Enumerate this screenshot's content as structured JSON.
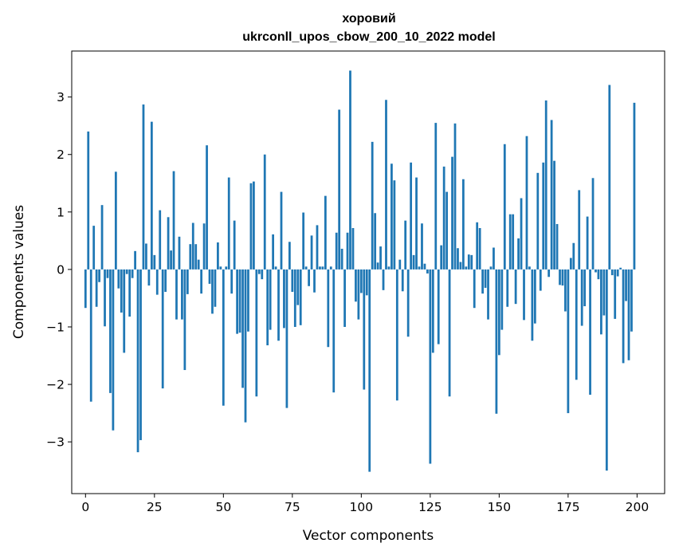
{
  "chart_data": {
    "type": "bar",
    "title": "хоровий",
    "subtitle": "ukrconll_upos_cbow_200_10_2022 model",
    "xlabel": "Vector components",
    "ylabel": "Components values",
    "xlim": [
      -5,
      210
    ],
    "ylim": [
      -3.9,
      3.8
    ],
    "xticks": [
      0,
      25,
      50,
      75,
      100,
      125,
      150,
      175,
      200
    ],
    "yticks": [
      -3,
      -2,
      -1,
      0,
      1,
      2,
      3
    ],
    "ytick_labels": [
      "−3",
      "−2",
      "−1",
      "0",
      "1",
      "2",
      "3"
    ],
    "color": "#1f77b4",
    "grid": false,
    "x": [
      0,
      1,
      2,
      3,
      4,
      5,
      6,
      7,
      8,
      9,
      10,
      11,
      12,
      13,
      14,
      15,
      16,
      17,
      18,
      19,
      20,
      21,
      22,
      23,
      24,
      25,
      26,
      27,
      28,
      29,
      30,
      31,
      32,
      33,
      34,
      35,
      36,
      37,
      38,
      39,
      40,
      41,
      42,
      43,
      44,
      45,
      46,
      47,
      48,
      49,
      50,
      51,
      52,
      53,
      54,
      55,
      56,
      57,
      58,
      59,
      60,
      61,
      62,
      63,
      64,
      65,
      66,
      67,
      68,
      69,
      70,
      71,
      72,
      73,
      74,
      75,
      76,
      77,
      78,
      79,
      80,
      81,
      82,
      83,
      84,
      85,
      86,
      87,
      88,
      89,
      90,
      91,
      92,
      93,
      94,
      95,
      96,
      97,
      98,
      99,
      100,
      101,
      102,
      103,
      104,
      105,
      106,
      107,
      108,
      109,
      110,
      111,
      112,
      113,
      114,
      115,
      116,
      117,
      118,
      119,
      120,
      121,
      122,
      123,
      124,
      125,
      126,
      127,
      128,
      129,
      130,
      131,
      132,
      133,
      134,
      135,
      136,
      137,
      138,
      139,
      140,
      141,
      142,
      143,
      144,
      145,
      146,
      147,
      148,
      149,
      150,
      151,
      152,
      153,
      154,
      155,
      156,
      157,
      158,
      159,
      160,
      161,
      162,
      163,
      164,
      165,
      166,
      167,
      168,
      169,
      170,
      171,
      172,
      173,
      174,
      175,
      176,
      177,
      178,
      179,
      180,
      181,
      182,
      183,
      184,
      185,
      186,
      187,
      188,
      189,
      190,
      191,
      192,
      193,
      194,
      195,
      196,
      197,
      198,
      199
    ],
    "values": [
      -0.67,
      2.4,
      -2.3,
      0.76,
      -0.65,
      -0.22,
      1.12,
      -0.99,
      -0.15,
      -2.15,
      -2.8,
      1.7,
      -0.33,
      -0.75,
      -1.45,
      -0.08,
      -0.82,
      -0.15,
      0.32,
      -3.18,
      -2.97,
      2.87,
      0.45,
      -0.28,
      2.57,
      0.25,
      -0.44,
      1.03,
      -2.07,
      -0.39,
      0.91,
      0.33,
      1.71,
      -0.87,
      0.57,
      -0.87,
      -1.75,
      -0.43,
      0.44,
      0.81,
      0.44,
      0.17,
      -0.42,
      0.8,
      2.16,
      -0.25,
      -0.77,
      -0.65,
      0.47,
      0.05,
      -2.37,
      0.05,
      1.6,
      -0.42,
      0.85,
      -1.12,
      -1.1,
      -2.06,
      -2.66,
      -1.08,
      1.5,
      1.53,
      -2.21,
      -0.08,
      -0.17,
      2.0,
      -1.32,
      -1.05,
      0.61,
      0.05,
      -1.24,
      1.35,
      -1.02,
      -2.41,
      0.48,
      -0.39,
      -1.0,
      -0.62,
      -0.97,
      0.99,
      0.05,
      -0.29,
      0.59,
      -0.4,
      0.77,
      0.05,
      0.05,
      1.28,
      -1.35,
      0.05,
      -2.14,
      0.64,
      2.78,
      0.36,
      -1.0,
      0.64,
      3.46,
      0.72,
      -0.56,
      -0.87,
      -0.41,
      -2.09,
      -0.45,
      -3.52,
      2.22,
      0.98,
      0.12,
      0.4,
      -0.36,
      2.95,
      0.05,
      1.84,
      1.55,
      -2.28,
      0.17,
      -0.38,
      0.85,
      -1.17,
      1.86,
      0.25,
      1.6,
      0.05,
      0.8,
      0.1,
      -0.07,
      -3.38,
      -1.45,
      2.55,
      -1.3,
      0.42,
      1.79,
      1.35,
      -2.21,
      1.96,
      2.54,
      0.37,
      0.13,
      1.57,
      0.05,
      0.26,
      0.25,
      -0.67,
      0.82,
      0.72,
      -0.42,
      -0.32,
      -0.87,
      0.05,
      0.38,
      -2.51,
      -1.49,
      -1.05,
      2.18,
      -0.65,
      0.96,
      0.96,
      -0.6,
      0.54,
      1.24,
      -0.88,
      2.32,
      0.05,
      -1.24,
      -0.94,
      1.68,
      -0.37,
      1.86,
      2.94,
      -0.13,
      2.6,
      1.89,
      0.79,
      -0.27,
      -0.28,
      -0.73,
      -2.5,
      0.2,
      0.46,
      -1.92,
      1.38,
      -0.98,
      -0.64,
      0.92,
      -2.18,
      1.59,
      -0.05,
      -0.17,
      -1.13,
      -0.8,
      -3.5,
      3.21,
      -0.1,
      -0.86,
      -0.12,
      0.03,
      -1.63,
      -0.55,
      -1.58,
      -1.08,
      2.9
    ]
  }
}
